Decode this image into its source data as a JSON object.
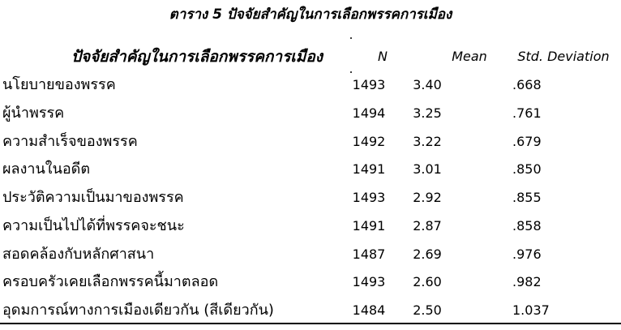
{
  "title": "ตาราง 5 ปัจจัยสำคัญในการเลือกพรรคการเมือง",
  "table": {
    "columns": {
      "factor": "ปัจจัยสำคัญในการเลือกพรรคการเมือง",
      "n": "N",
      "mean": "Mean",
      "std": "Std. Deviation"
    },
    "rows": [
      {
        "factor": "นโยบายของพรรค",
        "n": "1493",
        "mean": "3.40",
        "std": ".668"
      },
      {
        "factor": "ผู้นำพรรค",
        "n": "1494",
        "mean": "3.25",
        "std": ".761"
      },
      {
        "factor": "ความสำเร็จของพรรค",
        "n": "1492",
        "mean": "3.22",
        "std": ".679"
      },
      {
        "factor": "ผลงานในอดีต",
        "n": "1491",
        "mean": "3.01",
        "std": ".850"
      },
      {
        "factor": "ประวัติความเป็นมาของพรรค",
        "n": "1493",
        "mean": "2.92",
        "std": ".855"
      },
      {
        "factor": "ความเป็นไปได้ที่พรรคจะชนะ",
        "n": "1491",
        "mean": "2.87",
        "std": ".858"
      },
      {
        "factor": "สอดคล้องกับหลักศาสนา",
        "n": "1487",
        "mean": "2.69",
        "std": ".976"
      },
      {
        "factor": "ครอบครัวเคยเลือกพรรคนี้มาตลอด",
        "n": "1493",
        "mean": "2.60",
        "std": ".982"
      },
      {
        "factor": "อุดมการณ์ทางการเมืองเดียวกัน (สีเดียวกัน)",
        "n": "1484",
        "mean": "2.50",
        "std": "1.037"
      }
    ]
  },
  "colors": {
    "background": "#ffffff",
    "text": "#000000",
    "rule": "#000000"
  }
}
